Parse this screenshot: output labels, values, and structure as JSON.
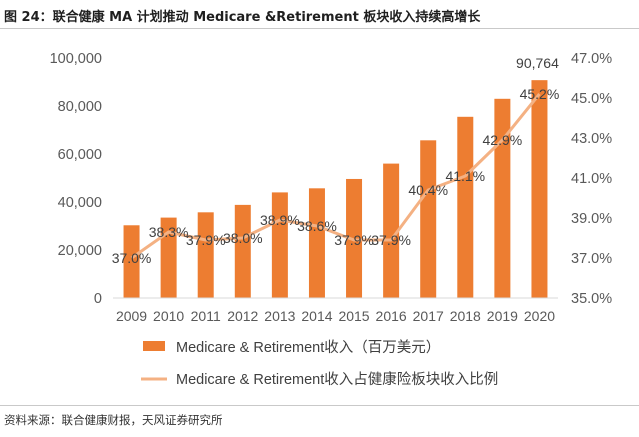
{
  "figure": {
    "title": "图 24：联合健康 MA 计划推动 Medicare &Retirement 板块收入持续高增长",
    "source": "资料来源：联合健康财报，天风证券研究所"
  },
  "colors": {
    "bar": "#ED7D31",
    "line": "#F4B183",
    "axis": "#d9d9d9",
    "text": "#595959"
  },
  "chart_data": {
    "type": "bar",
    "categories": [
      "2009",
      "2010",
      "2011",
      "2012",
      "2013",
      "2014",
      "2015",
      "2016",
      "2017",
      "2018",
      "2019",
      "2020"
    ],
    "series": [
      {
        "name": "Medicare & Retirement收入（百万美元）",
        "type": "bar",
        "axis": "left",
        "values": [
          30300,
          33500,
          35700,
          38800,
          44000,
          45700,
          49600,
          56000,
          65700,
          75500,
          83000,
          90764
        ]
      },
      {
        "name": "Medicare & Retirement收入占健康险板块收入比例",
        "type": "line",
        "axis": "right",
        "values": [
          37.0,
          38.3,
          37.9,
          38.0,
          38.9,
          38.6,
          37.9,
          37.9,
          40.4,
          41.1,
          42.9,
          45.2
        ]
      }
    ],
    "bar_label_last": "90,764",
    "line_labels": [
      "37.0%",
      "38.3%",
      "37.9%",
      "38.0%",
      "38.9%",
      "38.6%",
      "37.9%",
      "37.9%",
      "40.4%",
      "41.1%",
      "42.9%",
      "45.2%"
    ],
    "y_left": {
      "ylim": [
        0,
        100000
      ],
      "ticks": [
        0,
        20000,
        40000,
        60000,
        80000,
        100000
      ],
      "tick_labels": [
        "0",
        "20,000",
        "40,000",
        "60,000",
        "80,000",
        "100,000"
      ]
    },
    "y_right": {
      "ylim": [
        35.0,
        47.0
      ],
      "ticks": [
        35.0,
        37.0,
        39.0,
        41.0,
        43.0,
        45.0,
        47.0
      ],
      "tick_labels": [
        "35.0%",
        "37.0%",
        "39.0%",
        "41.0%",
        "43.0%",
        "45.0%",
        "47.0%"
      ]
    },
    "grid": false,
    "legend_position": "bottom"
  }
}
